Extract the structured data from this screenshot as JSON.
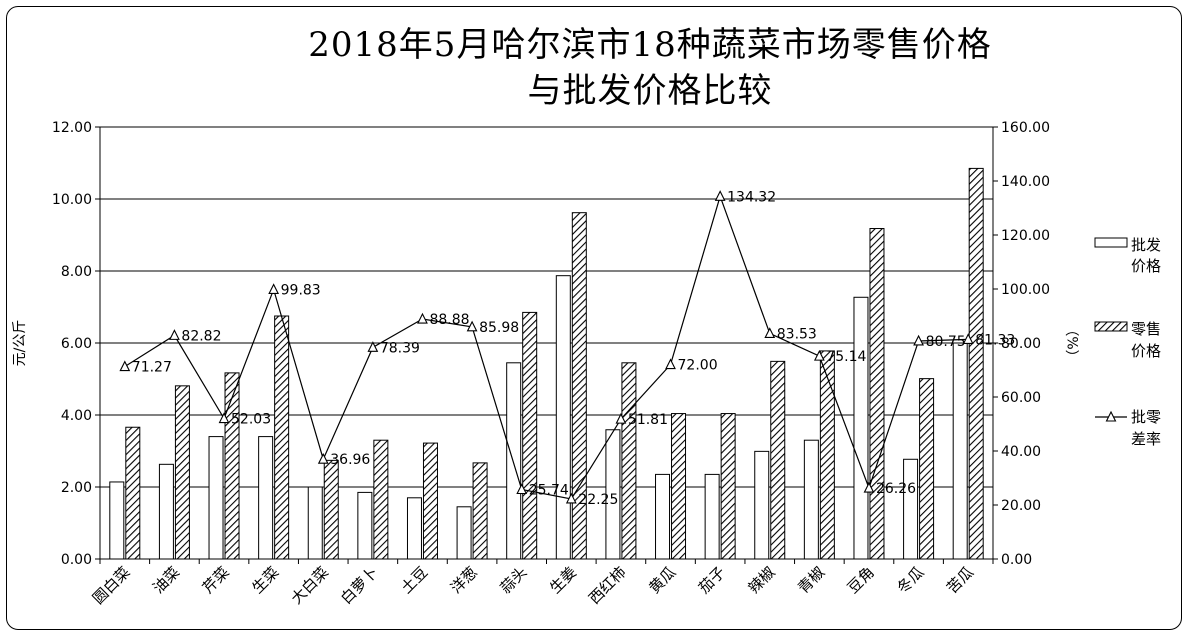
{
  "chart_data": {
    "type": "bar",
    "title_line1": "2018年5月哈尔滨市18种蔬菜市场零售价格",
    "title_line2": "与批发价格比较",
    "ylabel_left": "元/公斤",
    "ylabel_right": "（%）",
    "ylim_left": [
      0,
      12
    ],
    "ylim_right": [
      0,
      160
    ],
    "yticks_left": [
      "0.00",
      "2.00",
      "4.00",
      "6.00",
      "8.00",
      "10.00",
      "12.00"
    ],
    "yticks_right": [
      "0.00",
      "20.00",
      "40.00",
      "60.00",
      "80.00",
      "100.00",
      "120.00",
      "140.00",
      "160.00"
    ],
    "grid": true,
    "legend_position": "right",
    "categories": [
      "圆白菜",
      "油菜",
      "芹菜",
      "生菜",
      "大白菜",
      "白萝卜",
      "土豆",
      "洋葱",
      "蒜头",
      "生姜",
      "西红柿",
      "黄瓜",
      "茄子",
      "辣椒",
      "青椒",
      "豆角",
      "冬瓜",
      "苦瓜"
    ],
    "series": [
      {
        "name": "批发价格",
        "legend_line1": "批发",
        "legend_line2": "价格",
        "axis": "left",
        "values": [
          2.14,
          2.63,
          3.4,
          3.4,
          2.0,
          1.85,
          1.7,
          1.45,
          5.45,
          7.87,
          3.59,
          2.35,
          2.35,
          2.99,
          3.3,
          7.27,
          2.77,
          6.0
        ]
      },
      {
        "name": "零售价格",
        "legend_line1": "零售",
        "legend_line2": "价格",
        "axis": "left",
        "values": [
          3.66,
          4.81,
          5.17,
          6.75,
          2.74,
          3.3,
          3.22,
          2.67,
          6.85,
          9.62,
          5.45,
          4.04,
          4.04,
          5.49,
          5.78,
          9.18,
          5.01,
          10.85
        ]
      },
      {
        "name": "批零差率",
        "legend_line1": "批零",
        "legend_line2": "差率",
        "axis": "right",
        "type": "line",
        "values": [
          71.27,
          82.82,
          52.03,
          99.83,
          36.96,
          78.39,
          88.88,
          85.98,
          25.74,
          22.25,
          51.81,
          72.0,
          134.32,
          83.53,
          75.14,
          26.26,
          80.75,
          81.33
        ],
        "labels": [
          "71.27",
          "82.82",
          "52.03",
          "99.83",
          "36.96",
          "78.39",
          "88.88",
          "85.98",
          "25.74",
          "22.25",
          "51.81",
          "72.00",
          "134.32",
          "83.53",
          "75.14",
          "26.26",
          "80.75",
          "81.33"
        ]
      }
    ]
  },
  "colors": {
    "frame": "#000000",
    "bar_wholesale": "#ffffff",
    "bar_retail_hatch": "#000000",
    "line": "#000000",
    "background": "#ffffff"
  }
}
